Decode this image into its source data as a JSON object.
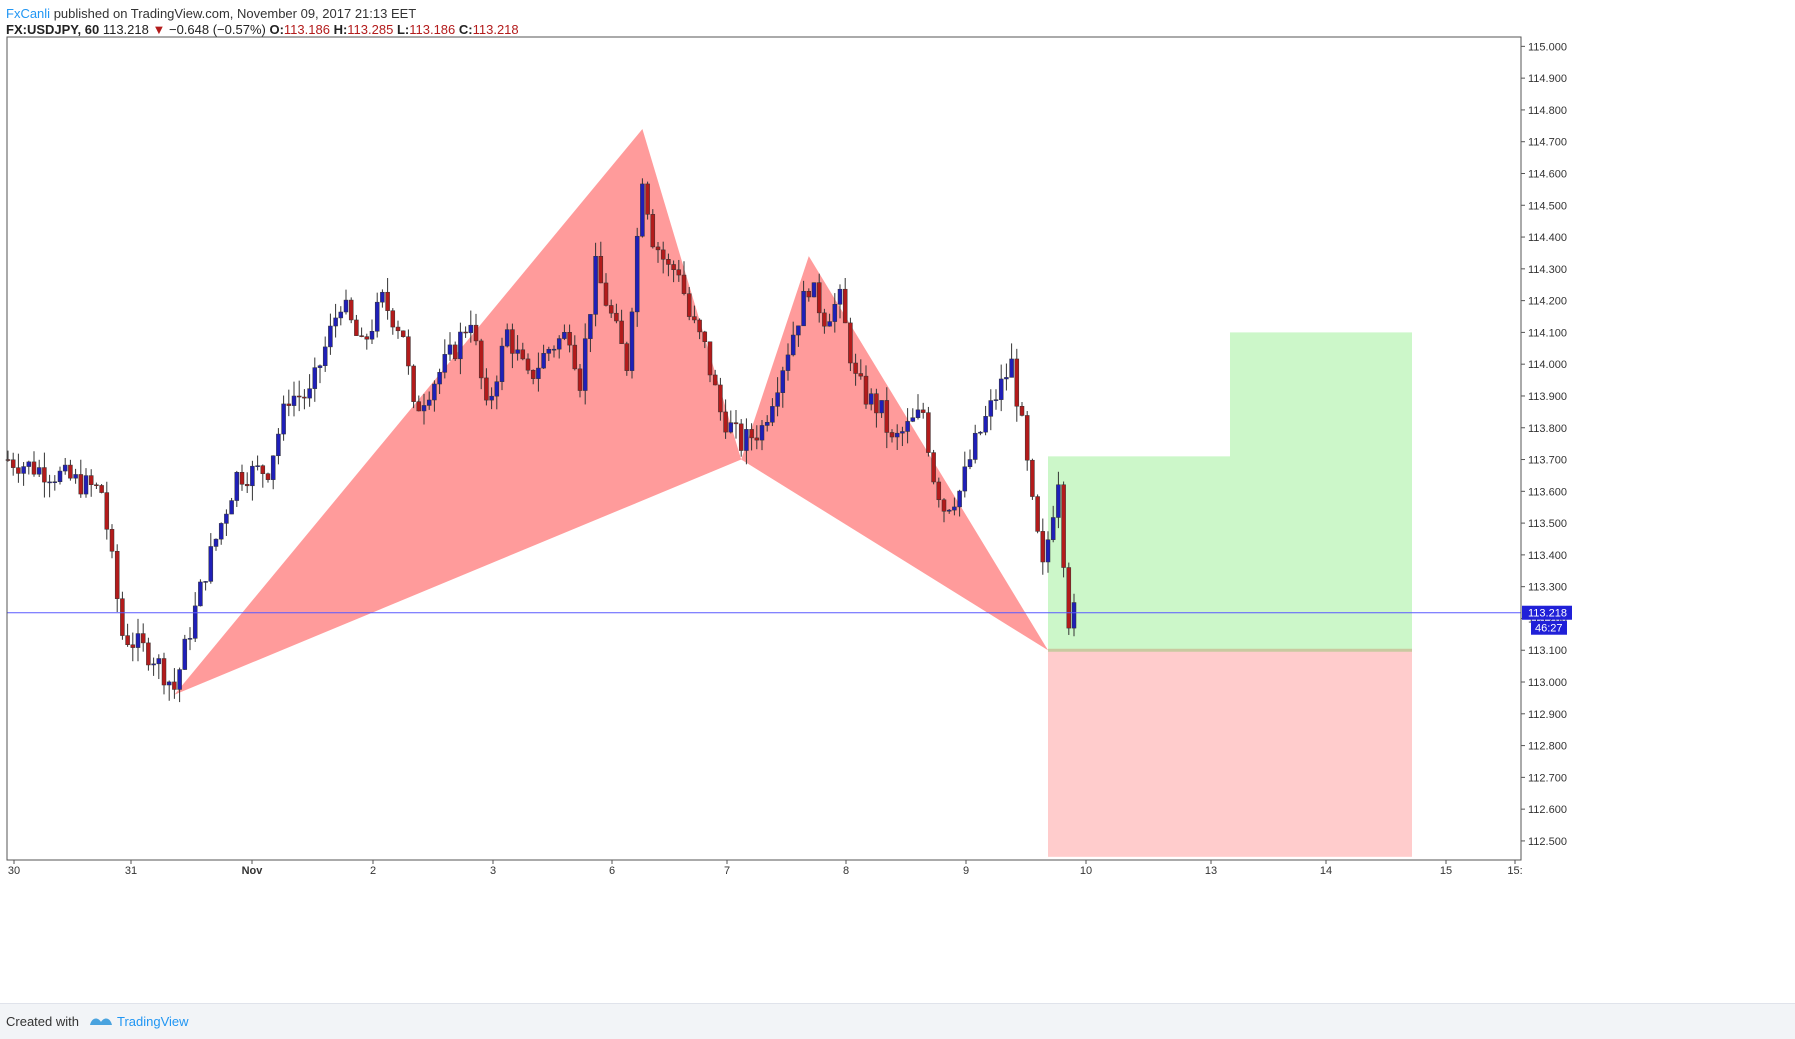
{
  "header": {
    "author": "FxCanli",
    "published_text": "published on TradingView.com, November 09, 2017 21:13 EET"
  },
  "quote": {
    "symbol": "FX:USDJPY, 60",
    "last": "113.218",
    "change": "−0.648 (−0.57%)",
    "open_label": "O:",
    "open": "113.186",
    "high_label": "H:",
    "high": "113.285",
    "low_label": "L:",
    "low": "113.186",
    "close_label": "C:",
    "close": "113.218",
    "down_color": "#b31b1b"
  },
  "footer": {
    "created_with": "Created with",
    "brand": "TradingView"
  },
  "chart_data": {
    "type": "candlestick",
    "symbol": "USDJPY",
    "interval": "60",
    "y_axis": {
      "min": 112.44,
      "max": 115.02,
      "ticks": [
        "115.000",
        "114.900",
        "114.800",
        "114.700",
        "114.600",
        "114.500",
        "114.400",
        "114.300",
        "114.200",
        "114.100",
        "114.000",
        "113.900",
        "113.800",
        "113.700",
        "113.600",
        "113.500",
        "113.400",
        "113.300",
        "113.200",
        "113.100",
        "113.000",
        "112.900",
        "112.800",
        "112.700",
        "112.600",
        "112.500"
      ]
    },
    "x_axis": {
      "ticks": [
        "30",
        "31",
        "Nov",
        "2",
        "3",
        "6",
        "7",
        "8",
        "9",
        "10",
        "13",
        "14",
        "15",
        "15:"
      ]
    },
    "current_price": {
      "value": "113.218",
      "countdown": "46:27",
      "price": 113.218
    },
    "colors": {
      "up": "#1f1fb8",
      "down": "#b31b1b",
      "pattern": "#ff8a8a",
      "target": "#ccf7c9",
      "stop": "#ffcccc",
      "price_line": "#5a5aff"
    },
    "pattern_points": [
      {
        "time": 32,
        "price": 112.96
      },
      {
        "time": 122,
        "price": 114.74
      },
      {
        "time": 141,
        "price": 113.7
      },
      {
        "time": 154,
        "price": 114.34
      },
      {
        "time": 200,
        "price": 113.1
      }
    ],
    "position": {
      "entry_time": 200,
      "entry": 113.1,
      "target_1_time_end": 235,
      "target_1": 113.71,
      "target_2_time_end": 270,
      "target_2": 114.1,
      "stop": 112.45
    },
    "anchors": [
      {
        "t": 0,
        "p": 113.7
      },
      {
        "t": 10,
        "p": 113.65
      },
      {
        "t": 18,
        "p": 113.6
      },
      {
        "t": 22,
        "p": 113.15
      },
      {
        "t": 28,
        "p": 113.08
      },
      {
        "t": 32,
        "p": 112.98
      },
      {
        "t": 38,
        "p": 113.35
      },
      {
        "t": 44,
        "p": 113.65
      },
      {
        "t": 50,
        "p": 113.67
      },
      {
        "t": 54,
        "p": 113.9
      },
      {
        "t": 58,
        "p": 113.9
      },
      {
        "t": 64,
        "p": 114.2
      },
      {
        "t": 68,
        "p": 114.05
      },
      {
        "t": 72,
        "p": 114.2
      },
      {
        "t": 76,
        "p": 114.1
      },
      {
        "t": 78,
        "p": 113.85
      },
      {
        "t": 82,
        "p": 113.95
      },
      {
        "t": 86,
        "p": 114.05
      },
      {
        "t": 89,
        "p": 114.15
      },
      {
        "t": 92,
        "p": 113.85
      },
      {
        "t": 96,
        "p": 114.1
      },
      {
        "t": 100,
        "p": 113.95
      },
      {
        "t": 104,
        "p": 114.05
      },
      {
        "t": 108,
        "p": 114.1
      },
      {
        "t": 110,
        "p": 113.95
      },
      {
        "t": 113,
        "p": 114.3
      },
      {
        "t": 117,
        "p": 114.1
      },
      {
        "t": 119,
        "p": 114.0
      },
      {
        "t": 122,
        "p": 114.6
      },
      {
        "t": 124,
        "p": 114.4
      },
      {
        "t": 127,
        "p": 114.3
      },
      {
        "t": 129,
        "p": 114.3
      },
      {
        "t": 131,
        "p": 114.15
      },
      {
        "t": 134,
        "p": 114.05
      },
      {
        "t": 137,
        "p": 113.85
      },
      {
        "t": 141,
        "p": 113.75
      },
      {
        "t": 145,
        "p": 113.8
      },
      {
        "t": 150,
        "p": 114.05
      },
      {
        "t": 154,
        "p": 114.25
      },
      {
        "t": 157,
        "p": 114.15
      },
      {
        "t": 160,
        "p": 114.2
      },
      {
        "t": 163,
        "p": 113.95
      },
      {
        "t": 165,
        "p": 113.9
      },
      {
        "t": 168,
        "p": 113.85
      },
      {
        "t": 170,
        "p": 113.75
      },
      {
        "t": 173,
        "p": 113.8
      },
      {
        "t": 176,
        "p": 113.85
      },
      {
        "t": 178,
        "p": 113.65
      },
      {
        "t": 180,
        "p": 113.55
      },
      {
        "t": 183,
        "p": 113.6
      },
      {
        "t": 186,
        "p": 113.75
      },
      {
        "t": 190,
        "p": 113.9
      },
      {
        "t": 193,
        "p": 114.0
      },
      {
        "t": 195,
        "p": 113.8
      },
      {
        "t": 197,
        "p": 113.55
      },
      {
        "t": 199,
        "p": 113.35
      },
      {
        "t": 201,
        "p": 113.55
      },
      {
        "t": 202,
        "p": 113.65
      },
      {
        "t": 203,
        "p": 113.4
      },
      {
        "t": 204,
        "p": 113.2
      },
      {
        "t": 205,
        "p": 113.218
      }
    ],
    "notes": "Candles are an approximation of the hourly USDJPY price path read from the chart; a bearish-to-bullish harmonic (cypher/crab-like) pattern with a long position tool."
  }
}
